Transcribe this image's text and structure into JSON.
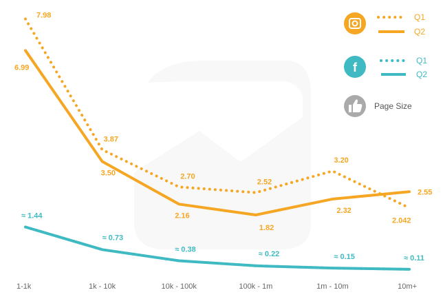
{
  "chart_data": {
    "type": "line",
    "categories": [
      "1-1k",
      "1k - 10k",
      "10k - 100k",
      "100k - 1m",
      "1m - 10m",
      "10m+"
    ],
    "series": [
      {
        "name": "Q1",
        "platform": "instagram",
        "style": "dotted",
        "color": "#F5A623",
        "values": [
          7.98,
          3.87,
          2.7,
          2.52,
          3.2,
          2.042
        ],
        "labels": [
          "7.98",
          "3.87",
          "2.70",
          "2.52",
          "3.20",
          "2.042"
        ]
      },
      {
        "name": "Q2",
        "platform": "instagram",
        "style": "solid",
        "color": "#F5A623",
        "values": [
          6.99,
          3.5,
          2.16,
          1.82,
          2.32,
          2.55
        ],
        "labels": [
          "6.99",
          "3.50",
          "2.16",
          "1.82",
          "2.32",
          "2.55"
        ]
      },
      {
        "name": "Q1",
        "platform": "facebook",
        "style": "dotted",
        "color": "#3FBAC2",
        "values": [
          1.44,
          0.73,
          0.38,
          0.22,
          0.15,
          0.11
        ],
        "labels": [
          "≈ 1.44",
          "≈ 0.73",
          "≈ 0.38",
          "≈ 0.22",
          "≈ 0.15",
          "≈ 0.11"
        ]
      },
      {
        "name": "Q2",
        "platform": "facebook",
        "style": "solid",
        "color": "#3FBAC2",
        "values": [
          1.44,
          0.73,
          0.38,
          0.22,
          0.15,
          0.11
        ],
        "labels": []
      }
    ],
    "ylim": [
      0,
      8.1
    ],
    "grid": false,
    "legend_position": "top-right"
  },
  "legend": {
    "instagram": {
      "icon": "instagram-icon",
      "color": "#F5A623",
      "q1": "Q1",
      "q2": "Q2"
    },
    "facebook": {
      "icon": "facebook-icon",
      "color": "#3FBAC2",
      "q1": "Q1",
      "q2": "Q2"
    },
    "page_size": {
      "icon": "thumbs-up-icon",
      "color": "#AAAAAA",
      "label": "Page Size"
    }
  }
}
